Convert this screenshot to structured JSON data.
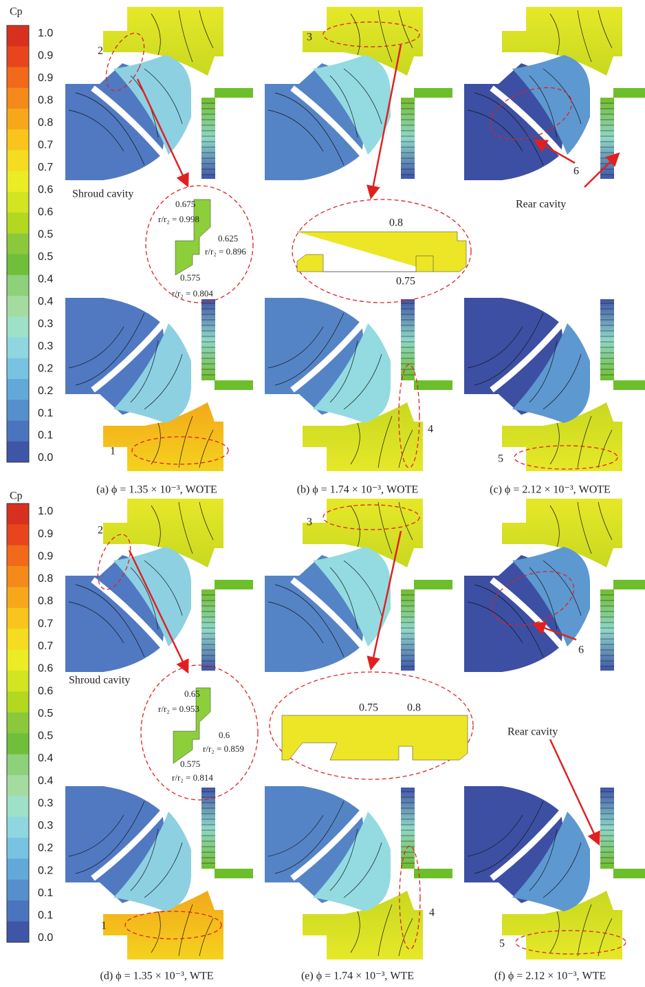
{
  "figures": [
    {
      "colorbar": {
        "title": "Cp",
        "labels": [
          "1.0",
          "0.9",
          "0.9",
          "0.8",
          "0.8",
          "0.7",
          "0.7",
          "0.6",
          "0.6",
          "0.5",
          "0.5",
          "0.4",
          "0.4",
          "0.3",
          "0.3",
          "0.2",
          "0.2",
          "0.1",
          "0.1",
          "0.0"
        ]
      },
      "panel_captions": [
        "(a) ϕ = 1.35 × 10⁻³, WOTE",
        "(b) ϕ = 1.74 × 10⁻³, WOTE",
        "(c) ϕ = 2.12 × 10⁻³, WOTE"
      ],
      "callouts": {
        "shroud_cavity": "Shroud cavity",
        "rear_cavity": "Rear cavity",
        "markers": [
          "1",
          "2",
          "3",
          "4",
          "5",
          "6"
        ]
      },
      "zoom_shroud": [
        "0.675",
        "r/r₂ = 0.998",
        "0.625",
        "r/r₂ = 0.896",
        "0.575",
        "r/r₂ = 0.804"
      ],
      "zoom_rear": [
        "0.8",
        "0.75"
      ]
    },
    {
      "colorbar": {
        "title": "Cp",
        "labels": [
          "1.0",
          "0.9",
          "0.9",
          "0.8",
          "0.8",
          "0.7",
          "0.7",
          "0.6",
          "0.6",
          "0.5",
          "0.5",
          "0.4",
          "0.4",
          "0.3",
          "0.3",
          "0.2",
          "0.2",
          "0.1",
          "0.1",
          "0.0"
        ]
      },
      "panel_captions": [
        "(d) ϕ = 1.35 × 10⁻³, WTE",
        "(e) ϕ = 1.74 × 10⁻³, WTE",
        "(f) ϕ = 2.12 × 10⁻³, WTE"
      ],
      "callouts": {
        "shroud_cavity": "Shroud cavity",
        "rear_cavity": "Rear cavity",
        "markers": [
          "1",
          "2",
          "3",
          "4",
          "5",
          "6"
        ]
      },
      "zoom_shroud": [
        "0.65",
        "r/r₂ = 0.953",
        "0.6",
        "r/r₂ = 0.859",
        "0.575",
        "r/r₂ = 0.814"
      ],
      "zoom_rear": [
        "0.75",
        "0.8"
      ]
    }
  ]
}
